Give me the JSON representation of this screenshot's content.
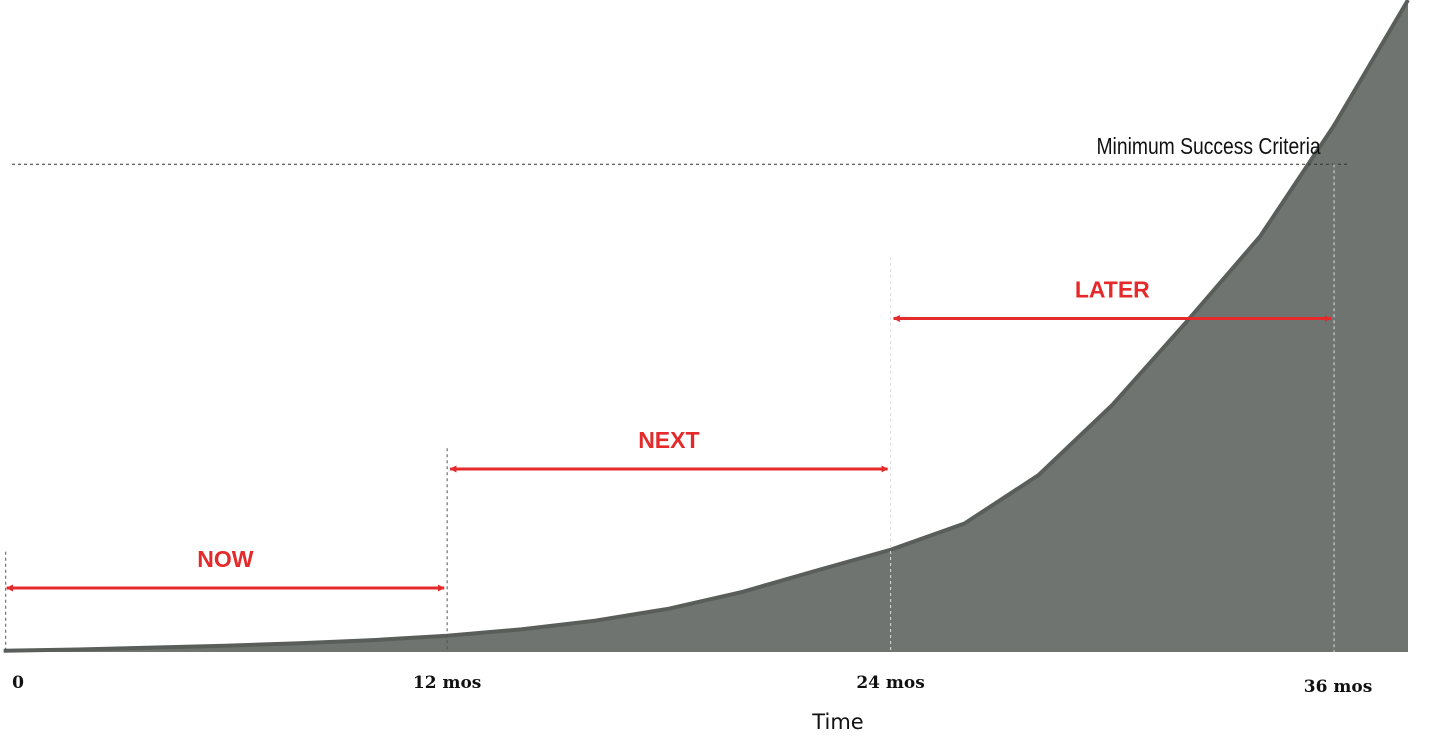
{
  "chart_data": {
    "type": "area",
    "x": [
      0,
      2,
      4,
      6,
      8,
      10,
      12,
      14,
      16,
      18,
      20,
      22,
      24,
      26,
      28,
      30,
      32,
      34,
      36,
      38
    ],
    "values": [
      0.2,
      0.4,
      0.7,
      1.0,
      1.4,
      1.9,
      2.6,
      3.6,
      5.0,
      6.9,
      9.6,
      13.0,
      16.3,
      20.5,
      28.2,
      39.4,
      52.6,
      66.3,
      84.0,
      104.0
    ],
    "xlabel": "Time",
    "ylabel": "",
    "xlim": [
      -0.1,
      39.3
    ],
    "ylim": [
      0,
      104
    ],
    "x_ticks": [
      {
        "x": 0,
        "label": "0"
      },
      {
        "x": 12,
        "label": "12 mos"
      },
      {
        "x": 24,
        "label": "24 mos"
      },
      {
        "x": 36,
        "label": "36 mos"
      }
    ],
    "threshold": {
      "label": "Minimum Success Criteria",
      "y": 77.8
    },
    "phases": [
      {
        "label": "NOW",
        "start": 0,
        "end": 12,
        "level": 10.2,
        "line_top": 16.0
      },
      {
        "label": "NEXT",
        "start": 12,
        "end": 24,
        "level": 29.2,
        "line_top": 32.5
      },
      {
        "label": "LATER",
        "start": 24,
        "end": 36,
        "level": 53.2,
        "line_top": 63.0
      }
    ],
    "grid": false,
    "legend": "none",
    "colors": {
      "area": "#6f7471",
      "area_edge": "#5a5e5b",
      "phase": "#e42a2a",
      "guide": "#555555"
    }
  }
}
